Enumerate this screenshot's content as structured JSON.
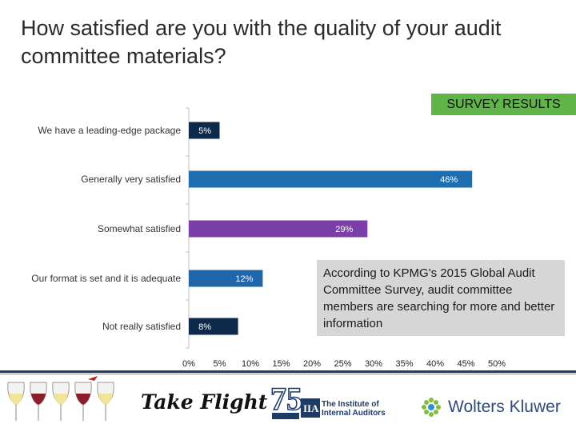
{
  "title": "How satisfied are you with the quality of your audit committee materials?",
  "badge": "SURVEY RESULTS",
  "chart_data": {
    "type": "bar",
    "orientation": "horizontal",
    "categories": [
      "We have a leading-edge package",
      "Generally very satisfied",
      "Somewhat satisfied",
      "Our format is set and it is adequate",
      "Not really satisfied"
    ],
    "values": [
      5,
      46,
      29,
      12,
      8
    ],
    "data_labels": [
      "5%",
      "46%",
      "29%",
      "12%",
      "8%"
    ],
    "colors": [
      "#0d2a4a",
      "#1f6fb0",
      "#7b3fa7",
      "#2166a8",
      "#0d2a4a"
    ],
    "label_colors": [
      "#ffffff",
      "#ffffff",
      "#ffffff",
      "#ffffff",
      "#ffffff"
    ],
    "xlim": [
      0,
      50
    ],
    "xticks": [
      "0%",
      "5%",
      "10%",
      "15%",
      "20%",
      "25%",
      "30%",
      "35%",
      "40%",
      "45%",
      "50%"
    ]
  },
  "callout": "According to KPMG's 2015 Global Audit Committee Survey, audit committee members are searching for more and better information",
  "footer": {
    "take_flight": "Take Flight",
    "iia": "The Institute of Internal Auditors",
    "wolters_kluwer": "Wolters Kluwer"
  }
}
